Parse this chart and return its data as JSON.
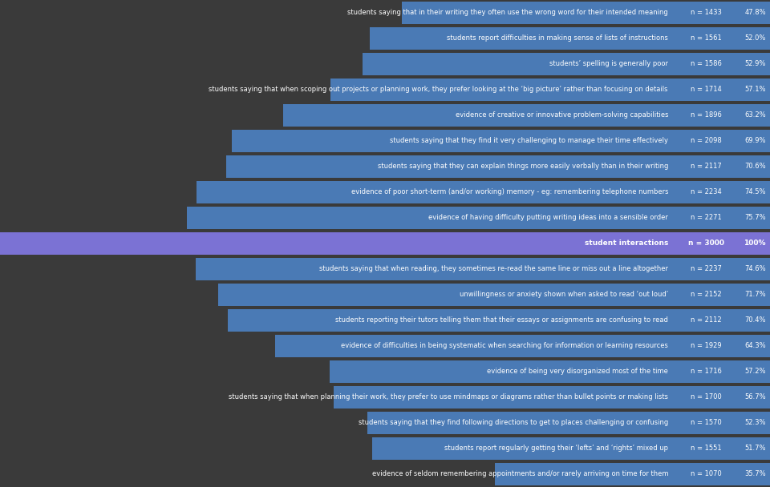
{
  "background_color": "#3a3a3a",
  "bar_color": "#4a7ab5",
  "highlight_color": "#7b72d4",
  "text_color": "#ffffff",
  "rows": [
    {
      "label": "students saying that in their writing they often use the wrong word for their intended meaning",
      "n": 1433,
      "pct": 47.8
    },
    {
      "label": "students report difficulties in making sense of lists of instructions",
      "n": 1561,
      "pct": 52.0
    },
    {
      "label": "students’ spelling is generally poor",
      "n": 1586,
      "pct": 52.9
    },
    {
      "label": "students saying that when scoping out projects or planning work, they prefer looking at the ‘big picture’ rather than focusing on details",
      "n": 1714,
      "pct": 57.1
    },
    {
      "label": "evidence of creative or innovative problem-solving capabilities",
      "n": 1896,
      "pct": 63.2
    },
    {
      "label": "students saying that they find it very challenging to manage their time effectively",
      "n": 2098,
      "pct": 69.9
    },
    {
      "label": "students saying that they can explain things more easily verbally than in their writing",
      "n": 2117,
      "pct": 70.6
    },
    {
      "label": "evidence of poor short-term (and/or working) memory - eg: remembering telephone numbers",
      "n": 2234,
      "pct": 74.5
    },
    {
      "label": "evidence of having difficulty putting writing ideas into a sensible order",
      "n": 2271,
      "pct": 75.7
    },
    {
      "label": "student interactions",
      "n": 3000,
      "pct": 100.0
    },
    {
      "label": "students saying that when reading, they sometimes re-read the same line or miss out a line altogether",
      "n": 2237,
      "pct": 74.6
    },
    {
      "label": "unwillingness or anxiety shown when asked to read ‘out loud’",
      "n": 2152,
      "pct": 71.7
    },
    {
      "label": "students reporting their tutors telling them that their essays or assignments are confusing to read",
      "n": 2112,
      "pct": 70.4
    },
    {
      "label": "evidence of difficulties in being systematic when searching for information or learning resources",
      "n": 1929,
      "pct": 64.3
    },
    {
      "label": "evidence of being very disorganized most of the time",
      "n": 1716,
      "pct": 57.2
    },
    {
      "label": "students saying that when planning their work, they prefer to use mindmaps or diagrams rather than bullet points or making lists",
      "n": 1700,
      "pct": 56.7
    },
    {
      "label": "students saying that they find following directions to get to places challenging or confusing",
      "n": 1570,
      "pct": 52.3
    },
    {
      "label": "students report regularly getting their ‘lefts’ and ‘rights’ mixed up",
      "n": 1551,
      "pct": 51.7
    },
    {
      "label": "evidence of seldom remembering appointments and/or rarely arriving on time for them",
      "n": 1070,
      "pct": 35.7
    }
  ],
  "figsize": [
    9.6,
    6.08
  ],
  "dpi": 100,
  "font_family": "DejaVu Sans"
}
